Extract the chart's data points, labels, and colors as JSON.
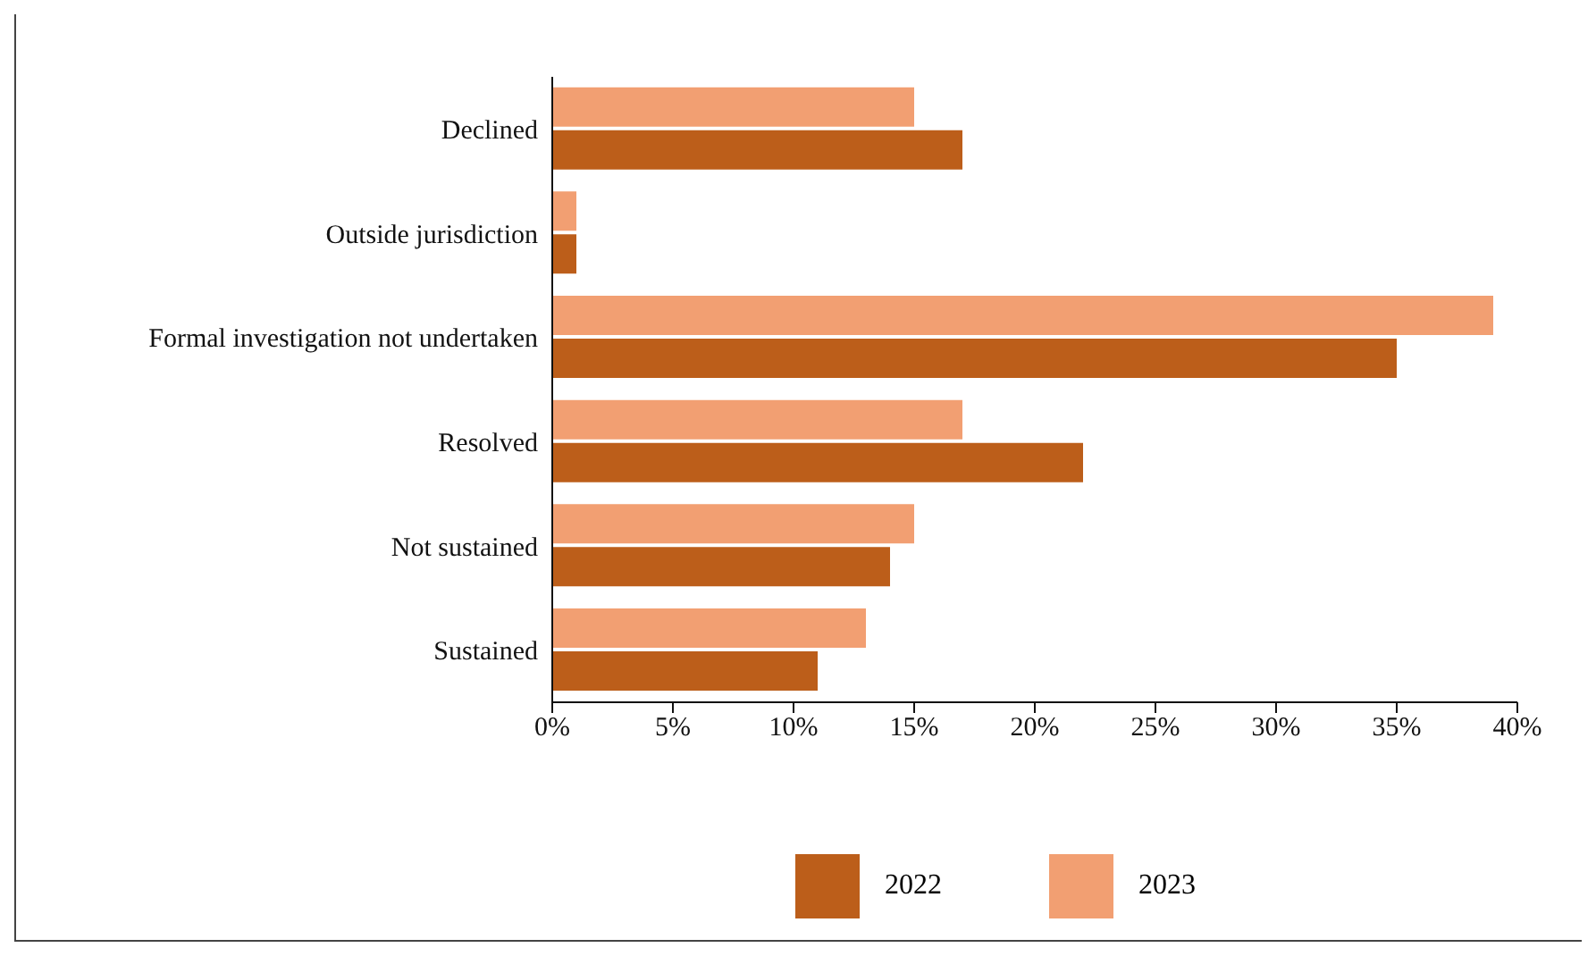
{
  "chart_data": {
    "type": "bar",
    "orientation": "horizontal",
    "categories": [
      "Declined",
      "Outside jurisdiction",
      "Formal investigation not undertaken",
      "Resolved",
      "Not sustained",
      "Sustained"
    ],
    "series": [
      {
        "name": "2022",
        "color": "#bc5e1a",
        "values": [
          17,
          1,
          35,
          22,
          14,
          11
        ]
      },
      {
        "name": "2023",
        "color": "#f29f72",
        "values": [
          15,
          1,
          39,
          17,
          15,
          13
        ]
      }
    ],
    "xlim": [
      0,
      40
    ],
    "xticks": [
      {
        "value": 0,
        "label": "0%"
      },
      {
        "value": 5,
        "label": "5%"
      },
      {
        "value": 10,
        "label": "10%"
      },
      {
        "value": 15,
        "label": "15%"
      },
      {
        "value": 20,
        "label": "20%"
      },
      {
        "value": 25,
        "label": "25%"
      },
      {
        "value": 30,
        "label": "30%"
      },
      {
        "value": 35,
        "label": "35%"
      },
      {
        "value": 40,
        "label": "40%"
      }
    ],
    "grid": false,
    "legend": "bottom"
  }
}
